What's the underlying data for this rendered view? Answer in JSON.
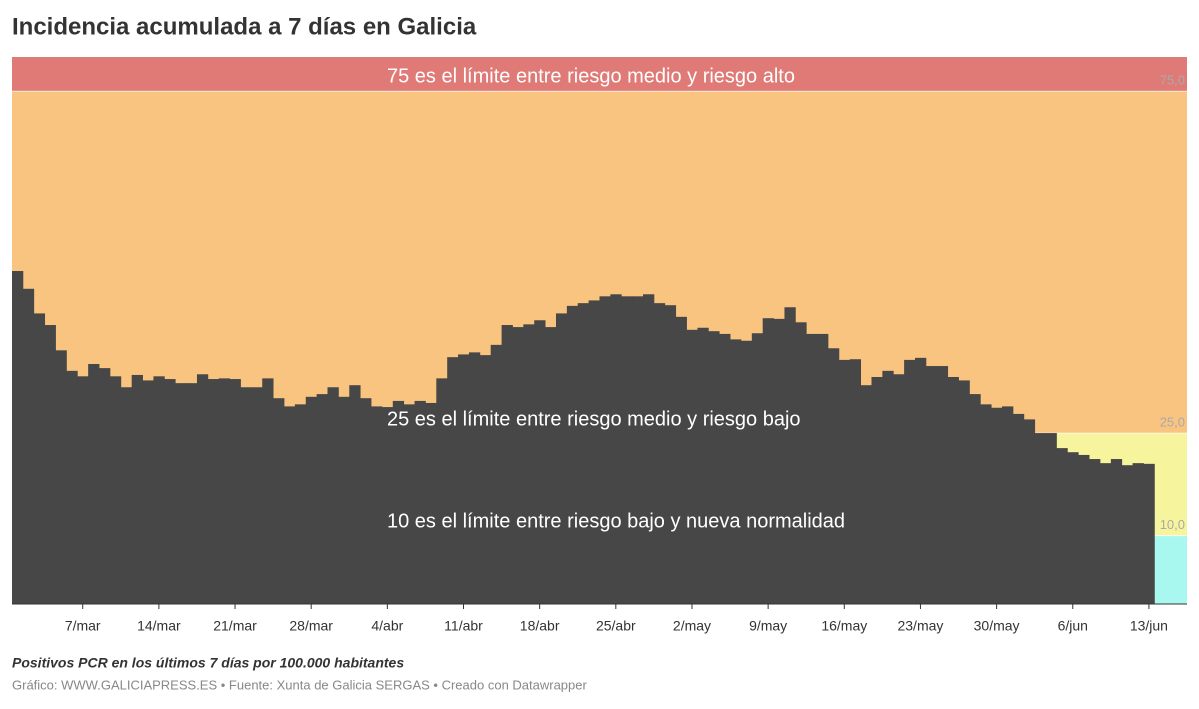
{
  "chart_data": {
    "type": "bar",
    "title": "Incidencia acumulada a 7 días en Galicia",
    "subtitle": "Positivos PCR en los últimos 7 días por 100.000 habitantes",
    "source": "Gráfico: WWW.GALICIAPRESS.ES • Fuente: Xunta de Galicia SERGAS • Creado con Datawrapper",
    "annotations": [
      "75 es el límite entre riesgo medio y riesgo alto",
      "25 es el límite entre riesgo medio y riesgo bajo",
      "10 es el límite entre riesgo bajo y nueva normalidad"
    ],
    "categories": [
      null,
      null,
      null,
      null,
      null,
      null,
      "7/mar",
      null,
      null,
      null,
      null,
      null,
      null,
      "14/mar",
      null,
      null,
      null,
      null,
      null,
      null,
      "21/mar",
      null,
      null,
      null,
      null,
      null,
      null,
      "28/mar",
      null,
      null,
      null,
      null,
      null,
      null,
      "4/abr",
      null,
      null,
      null,
      null,
      null,
      null,
      "11/abr",
      null,
      null,
      null,
      null,
      null,
      null,
      "18/abr",
      null,
      null,
      null,
      null,
      null,
      null,
      "25/abr",
      null,
      null,
      null,
      null,
      null,
      null,
      "2/may",
      null,
      null,
      null,
      null,
      null,
      null,
      "9/may",
      null,
      null,
      null,
      null,
      null,
      null,
      "16/may",
      null,
      null,
      null,
      null,
      null,
      null,
      "23/may",
      null,
      null,
      null,
      null,
      null,
      null,
      "30/may",
      null,
      null,
      null,
      null,
      null,
      null,
      "6/jun",
      null,
      null,
      null,
      null,
      null,
      null,
      "13/jun",
      null,
      null,
      null
    ],
    "values": [
      48.7,
      46.1,
      42.5,
      40.8,
      37.1,
      34.1,
      33.3,
      35.1,
      34.5,
      33.3,
      31.7,
      33.5,
      32.7,
      33.3,
      32.9,
      32.3,
      32.3,
      33.6,
      32.9,
      33.0,
      32.9,
      31.7,
      31.7,
      33.0,
      30.1,
      28.9,
      29.2,
      30.3,
      30.7,
      31.7,
      30.3,
      32.0,
      30.1,
      28.9,
      28.8,
      29.7,
      29.2,
      29.7,
      29.4,
      33.0,
      36.1,
      36.5,
      36.8,
      36.4,
      37.9,
      40.8,
      40.5,
      40.9,
      41.5,
      40.5,
      42.5,
      43.6,
      44.0,
      44.4,
      45.0,
      45.3,
      45.0,
      45.0,
      45.3,
      44.0,
      43.7,
      42.0,
      40.1,
      40.4,
      39.9,
      39.5,
      38.7,
      38.5,
      39.6,
      41.8,
      41.7,
      43.4,
      41.2,
      39.5,
      39.5,
      37.4,
      35.7,
      35.8,
      32.0,
      33.2,
      34.1,
      33.6,
      35.7,
      36.0,
      34.8,
      34.8,
      33.2,
      32.7,
      30.7,
      29.2,
      28.7,
      28.9,
      27.8,
      27.0,
      25.0,
      25.0,
      22.8,
      22.2,
      21.8,
      21.2,
      20.6,
      21.2,
      20.3,
      20.6,
      20.5,
      null,
      null,
      null
    ],
    "color": "#474747",
    "ylim": [
      0,
      80
    ],
    "yticks": [
      {
        "value": 10,
        "label": "10,0"
      },
      {
        "value": 25,
        "label": "25,0"
      },
      {
        "value": 75,
        "label": "75,0"
      }
    ],
    "band_colors": [
      "#a9f8ef",
      "#f6f59d",
      "#f9c47f",
      "#df7a77"
    ]
  }
}
